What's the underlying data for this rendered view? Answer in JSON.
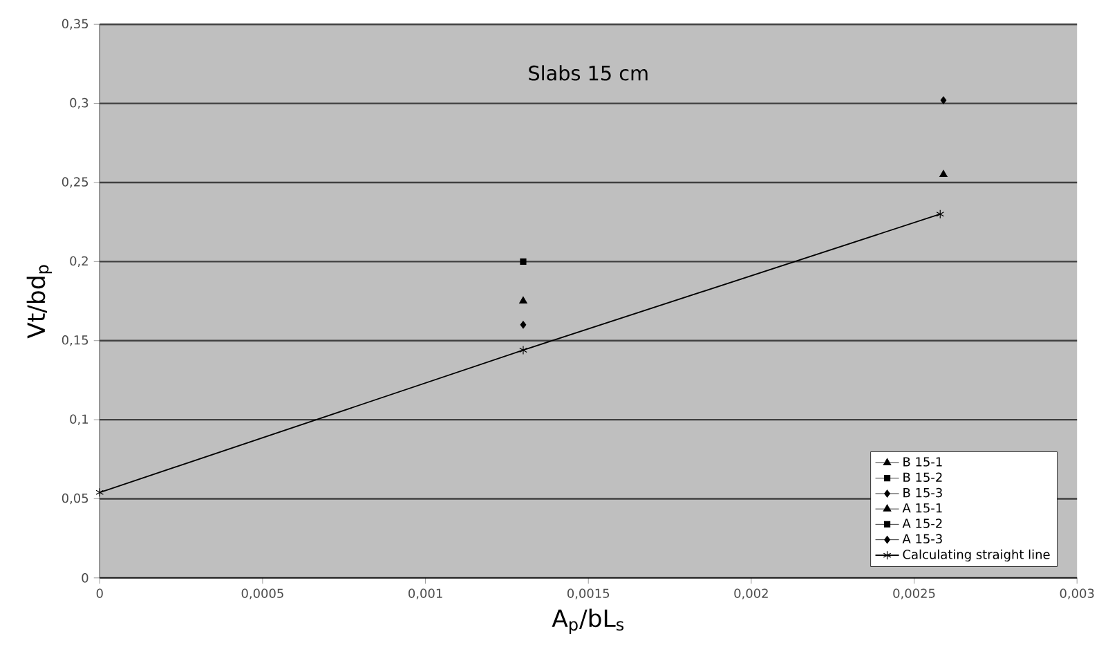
{
  "chart_data": {
    "type": "scatter",
    "title": "Slabs 15 cm",
    "xlabel": "A$_{p}$/bL$_{s}$",
    "ylabel": "Vt/bd$_{p}$",
    "xlim": [
      0,
      0.003
    ],
    "ylim": [
      0,
      0.35
    ],
    "xticks": [
      0,
      {
        "value": 0.0005,
        "label": "0,0005"
      },
      {
        "value": 0.001,
        "label": "0,001"
      },
      {
        "value": 0.0015,
        "label": "0,0015"
      },
      {
        "value": 0.002,
        "label": "0,002"
      },
      {
        "value": 0.0025,
        "label": "0,0025"
      },
      {
        "value": 0.003,
        "label": "0,003"
      }
    ],
    "yticks": [
      0,
      {
        "value": 0.05,
        "label": "0,05"
      },
      {
        "value": 0.1,
        "label": "0,1"
      },
      {
        "value": 0.15,
        "label": "0,15"
      },
      {
        "value": 0.2,
        "label": "0,2"
      },
      {
        "value": 0.25,
        "label": "0,25"
      },
      {
        "value": 0.3,
        "label": "0,3"
      },
      {
        "value": 0.35,
        "label": "0,35"
      }
    ],
    "grid": "y",
    "legend": "bottom right",
    "series": [
      {
        "name": "B 15-1",
        "color": "#000000",
        "marker": "triangle",
        "x": [
          0.00259
        ],
        "values": [
          0.255
        ]
      },
      {
        "name": "B 15-2",
        "color": "#000000",
        "marker": "square",
        "values": [
          null
        ]
      },
      {
        "name": "B 15-3",
        "color": "#000000",
        "marker": "diamond",
        "x": [
          0.00259
        ],
        "values": [
          0.302
        ]
      },
      {
        "name": "A 15-1",
        "color": "#000000",
        "marker": "triangle",
        "x": [
          0.0013
        ],
        "values": [
          0.175
        ]
      },
      {
        "name": "A 15-2",
        "color": "#000000",
        "marker": "square",
        "x": [
          0.0013
        ],
        "values": [
          0.2
        ]
      },
      {
        "name": "A 15-3",
        "color": "#000000",
        "marker": "diamond",
        "x": [
          0.0013
        ],
        "values": [
          0.16
        ]
      },
      {
        "name": "Calculating straight line",
        "type": "line",
        "color": "#000000",
        "marker": "cross",
        "x": [
          0,
          0.0013,
          0.00258
        ],
        "values": [
          0.054,
          0.144,
          0.23
        ]
      }
    ]
  }
}
